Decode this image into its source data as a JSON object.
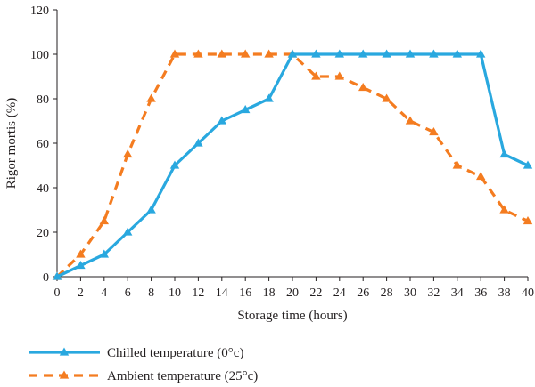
{
  "chart_data": {
    "type": "line",
    "title": "",
    "xlabel": "Storage time (hours)",
    "ylabel": "Rigor mortis (%)",
    "xlim": [
      0,
      40
    ],
    "ylim": [
      0,
      120
    ],
    "x_ticks": [
      0,
      2,
      4,
      6,
      8,
      10,
      12,
      14,
      16,
      18,
      20,
      22,
      24,
      26,
      28,
      30,
      32,
      34,
      36,
      38,
      40
    ],
    "y_ticks": [
      0,
      20,
      40,
      60,
      80,
      100,
      120
    ],
    "grid": false,
    "legend_position": "bottom",
    "series": [
      {
        "name": "Chilled temperature (0°c)",
        "color": "#29a8df",
        "line_style": "solid",
        "marker": "triangle",
        "x": [
          0,
          2,
          4,
          6,
          8,
          10,
          12,
          14,
          16,
          18,
          20,
          22,
          24,
          26,
          28,
          30,
          32,
          34,
          36,
          38,
          40
        ],
        "y": [
          0,
          5,
          10,
          20,
          30,
          50,
          60,
          70,
          75,
          80,
          100,
          100,
          100,
          100,
          100,
          100,
          100,
          100,
          100,
          55,
          50
        ]
      },
      {
        "name": "Ambient temperature (25°c)",
        "color": "#f47c20",
        "line_style": "dashed",
        "marker": "triangle",
        "x": [
          0,
          2,
          4,
          6,
          8,
          10,
          12,
          14,
          16,
          18,
          20,
          22,
          24,
          26,
          28,
          30,
          32,
          34,
          36,
          38,
          40
        ],
        "y": [
          0,
          10,
          25,
          55,
          80,
          100,
          100,
          100,
          100,
          100,
          100,
          90,
          90,
          85,
          80,
          70,
          65,
          50,
          45,
          30,
          25
        ]
      }
    ]
  }
}
